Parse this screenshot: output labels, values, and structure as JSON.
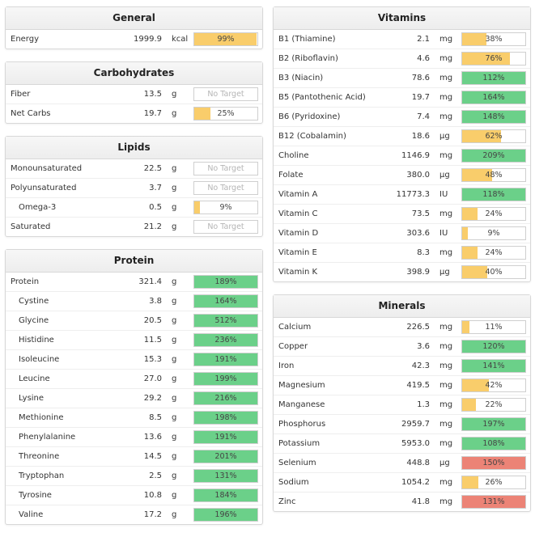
{
  "colors": {
    "low": "#f9cd6b",
    "ok": "#6bd089",
    "over": "#ec8376"
  },
  "sections": {
    "general": {
      "title": "General",
      "rows": [
        {
          "name": "Energy",
          "amount": "1999.9",
          "unit": "kcal",
          "percent": "99%",
          "fill": 0.99,
          "status": "low"
        }
      ]
    },
    "carbohydrates": {
      "title": "Carbohydrates",
      "rows": [
        {
          "name": "Fiber",
          "amount": "13.5",
          "unit": "g",
          "percent": "No Target",
          "fill": 0,
          "status": "none"
        },
        {
          "name": "Net Carbs",
          "amount": "19.7",
          "unit": "g",
          "percent": "25%",
          "fill": 0.25,
          "status": "low"
        }
      ]
    },
    "lipids": {
      "title": "Lipids",
      "rows": [
        {
          "name": "Monounsaturated",
          "amount": "22.5",
          "unit": "g",
          "percent": "No Target",
          "fill": 0,
          "status": "none"
        },
        {
          "name": "Polyunsaturated",
          "amount": "3.7",
          "unit": "g",
          "percent": "No Target",
          "fill": 0,
          "status": "none"
        },
        {
          "name": "Omega-3",
          "amount": "0.5",
          "unit": "g",
          "percent": "9%",
          "fill": 0.09,
          "status": "low",
          "sub": true
        },
        {
          "name": "Saturated",
          "amount": "21.2",
          "unit": "g",
          "percent": "No Target",
          "fill": 0,
          "status": "none"
        }
      ]
    },
    "protein": {
      "title": "Protein",
      "rows": [
        {
          "name": "Protein",
          "amount": "321.4",
          "unit": "g",
          "percent": "189%",
          "fill": 1,
          "status": "ok"
        },
        {
          "name": "Cystine",
          "amount": "3.8",
          "unit": "g",
          "percent": "164%",
          "fill": 1,
          "status": "ok",
          "sub": true
        },
        {
          "name": "Glycine",
          "amount": "20.5",
          "unit": "g",
          "percent": "512%",
          "fill": 1,
          "status": "ok",
          "sub": true
        },
        {
          "name": "Histidine",
          "amount": "11.5",
          "unit": "g",
          "percent": "236%",
          "fill": 1,
          "status": "ok",
          "sub": true
        },
        {
          "name": "Isoleucine",
          "amount": "15.3",
          "unit": "g",
          "percent": "191%",
          "fill": 1,
          "status": "ok",
          "sub": true
        },
        {
          "name": "Leucine",
          "amount": "27.0",
          "unit": "g",
          "percent": "199%",
          "fill": 1,
          "status": "ok",
          "sub": true
        },
        {
          "name": "Lysine",
          "amount": "29.2",
          "unit": "g",
          "percent": "216%",
          "fill": 1,
          "status": "ok",
          "sub": true
        },
        {
          "name": "Methionine",
          "amount": "8.5",
          "unit": "g",
          "percent": "198%",
          "fill": 1,
          "status": "ok",
          "sub": true
        },
        {
          "name": "Phenylalanine",
          "amount": "13.6",
          "unit": "g",
          "percent": "191%",
          "fill": 1,
          "status": "ok",
          "sub": true
        },
        {
          "name": "Threonine",
          "amount": "14.5",
          "unit": "g",
          "percent": "201%",
          "fill": 1,
          "status": "ok",
          "sub": true
        },
        {
          "name": "Tryptophan",
          "amount": "2.5",
          "unit": "g",
          "percent": "131%",
          "fill": 1,
          "status": "ok",
          "sub": true
        },
        {
          "name": "Tyrosine",
          "amount": "10.8",
          "unit": "g",
          "percent": "184%",
          "fill": 1,
          "status": "ok",
          "sub": true
        },
        {
          "name": "Valine",
          "amount": "17.2",
          "unit": "g",
          "percent": "196%",
          "fill": 1,
          "status": "ok",
          "sub": true
        }
      ]
    },
    "vitamins": {
      "title": "Vitamins",
      "rows": [
        {
          "name": "B1 (Thiamine)",
          "amount": "2.1",
          "unit": "mg",
          "percent": "38%",
          "fill": 0.38,
          "status": "low"
        },
        {
          "name": "B2 (Riboflavin)",
          "amount": "4.6",
          "unit": "mg",
          "percent": "76%",
          "fill": 0.76,
          "status": "low"
        },
        {
          "name": "B3 (Niacin)",
          "amount": "78.6",
          "unit": "mg",
          "percent": "112%",
          "fill": 1,
          "status": "ok"
        },
        {
          "name": "B5 (Pantothenic Acid)",
          "amount": "19.7",
          "unit": "mg",
          "percent": "164%",
          "fill": 1,
          "status": "ok"
        },
        {
          "name": "B6 (Pyridoxine)",
          "amount": "7.4",
          "unit": "mg",
          "percent": "148%",
          "fill": 1,
          "status": "ok"
        },
        {
          "name": "B12 (Cobalamin)",
          "amount": "18.6",
          "unit": "µg",
          "percent": "62%",
          "fill": 0.62,
          "status": "low"
        },
        {
          "name": "Choline",
          "amount": "1146.9",
          "unit": "mg",
          "percent": "209%",
          "fill": 1,
          "status": "ok"
        },
        {
          "name": "Folate",
          "amount": "380.0",
          "unit": "µg",
          "percent": "48%",
          "fill": 0.48,
          "status": "low"
        },
        {
          "name": "Vitamin A",
          "amount": "11773.3",
          "unit": "IU",
          "percent": "118%",
          "fill": 1,
          "status": "ok"
        },
        {
          "name": "Vitamin C",
          "amount": "73.5",
          "unit": "mg",
          "percent": "24%",
          "fill": 0.24,
          "status": "low"
        },
        {
          "name": "Vitamin D",
          "amount": "303.6",
          "unit": "IU",
          "percent": "9%",
          "fill": 0.09,
          "status": "low"
        },
        {
          "name": "Vitamin E",
          "amount": "8.3",
          "unit": "mg",
          "percent": "24%",
          "fill": 0.24,
          "status": "low"
        },
        {
          "name": "Vitamin K",
          "amount": "398.9",
          "unit": "µg",
          "percent": "40%",
          "fill": 0.4,
          "status": "low"
        }
      ]
    },
    "minerals": {
      "title": "Minerals",
      "rows": [
        {
          "name": "Calcium",
          "amount": "226.5",
          "unit": "mg",
          "percent": "11%",
          "fill": 0.11,
          "status": "low"
        },
        {
          "name": "Copper",
          "amount": "3.6",
          "unit": "mg",
          "percent": "120%",
          "fill": 1,
          "status": "ok"
        },
        {
          "name": "Iron",
          "amount": "42.3",
          "unit": "mg",
          "percent": "141%",
          "fill": 1,
          "status": "ok"
        },
        {
          "name": "Magnesium",
          "amount": "419.5",
          "unit": "mg",
          "percent": "42%",
          "fill": 0.42,
          "status": "low"
        },
        {
          "name": "Manganese",
          "amount": "1.3",
          "unit": "mg",
          "percent": "22%",
          "fill": 0.22,
          "status": "low"
        },
        {
          "name": "Phosphorus",
          "amount": "2959.7",
          "unit": "mg",
          "percent": "197%",
          "fill": 1,
          "status": "ok"
        },
        {
          "name": "Potassium",
          "amount": "5953.0",
          "unit": "mg",
          "percent": "108%",
          "fill": 1,
          "status": "ok"
        },
        {
          "name": "Selenium",
          "amount": "448.8",
          "unit": "µg",
          "percent": "150%",
          "fill": 1,
          "status": "over"
        },
        {
          "name": "Sodium",
          "amount": "1054.2",
          "unit": "mg",
          "percent": "26%",
          "fill": 0.26,
          "status": "low"
        },
        {
          "name": "Zinc",
          "amount": "41.8",
          "unit": "mg",
          "percent": "131%",
          "fill": 1,
          "status": "over"
        }
      ]
    }
  }
}
